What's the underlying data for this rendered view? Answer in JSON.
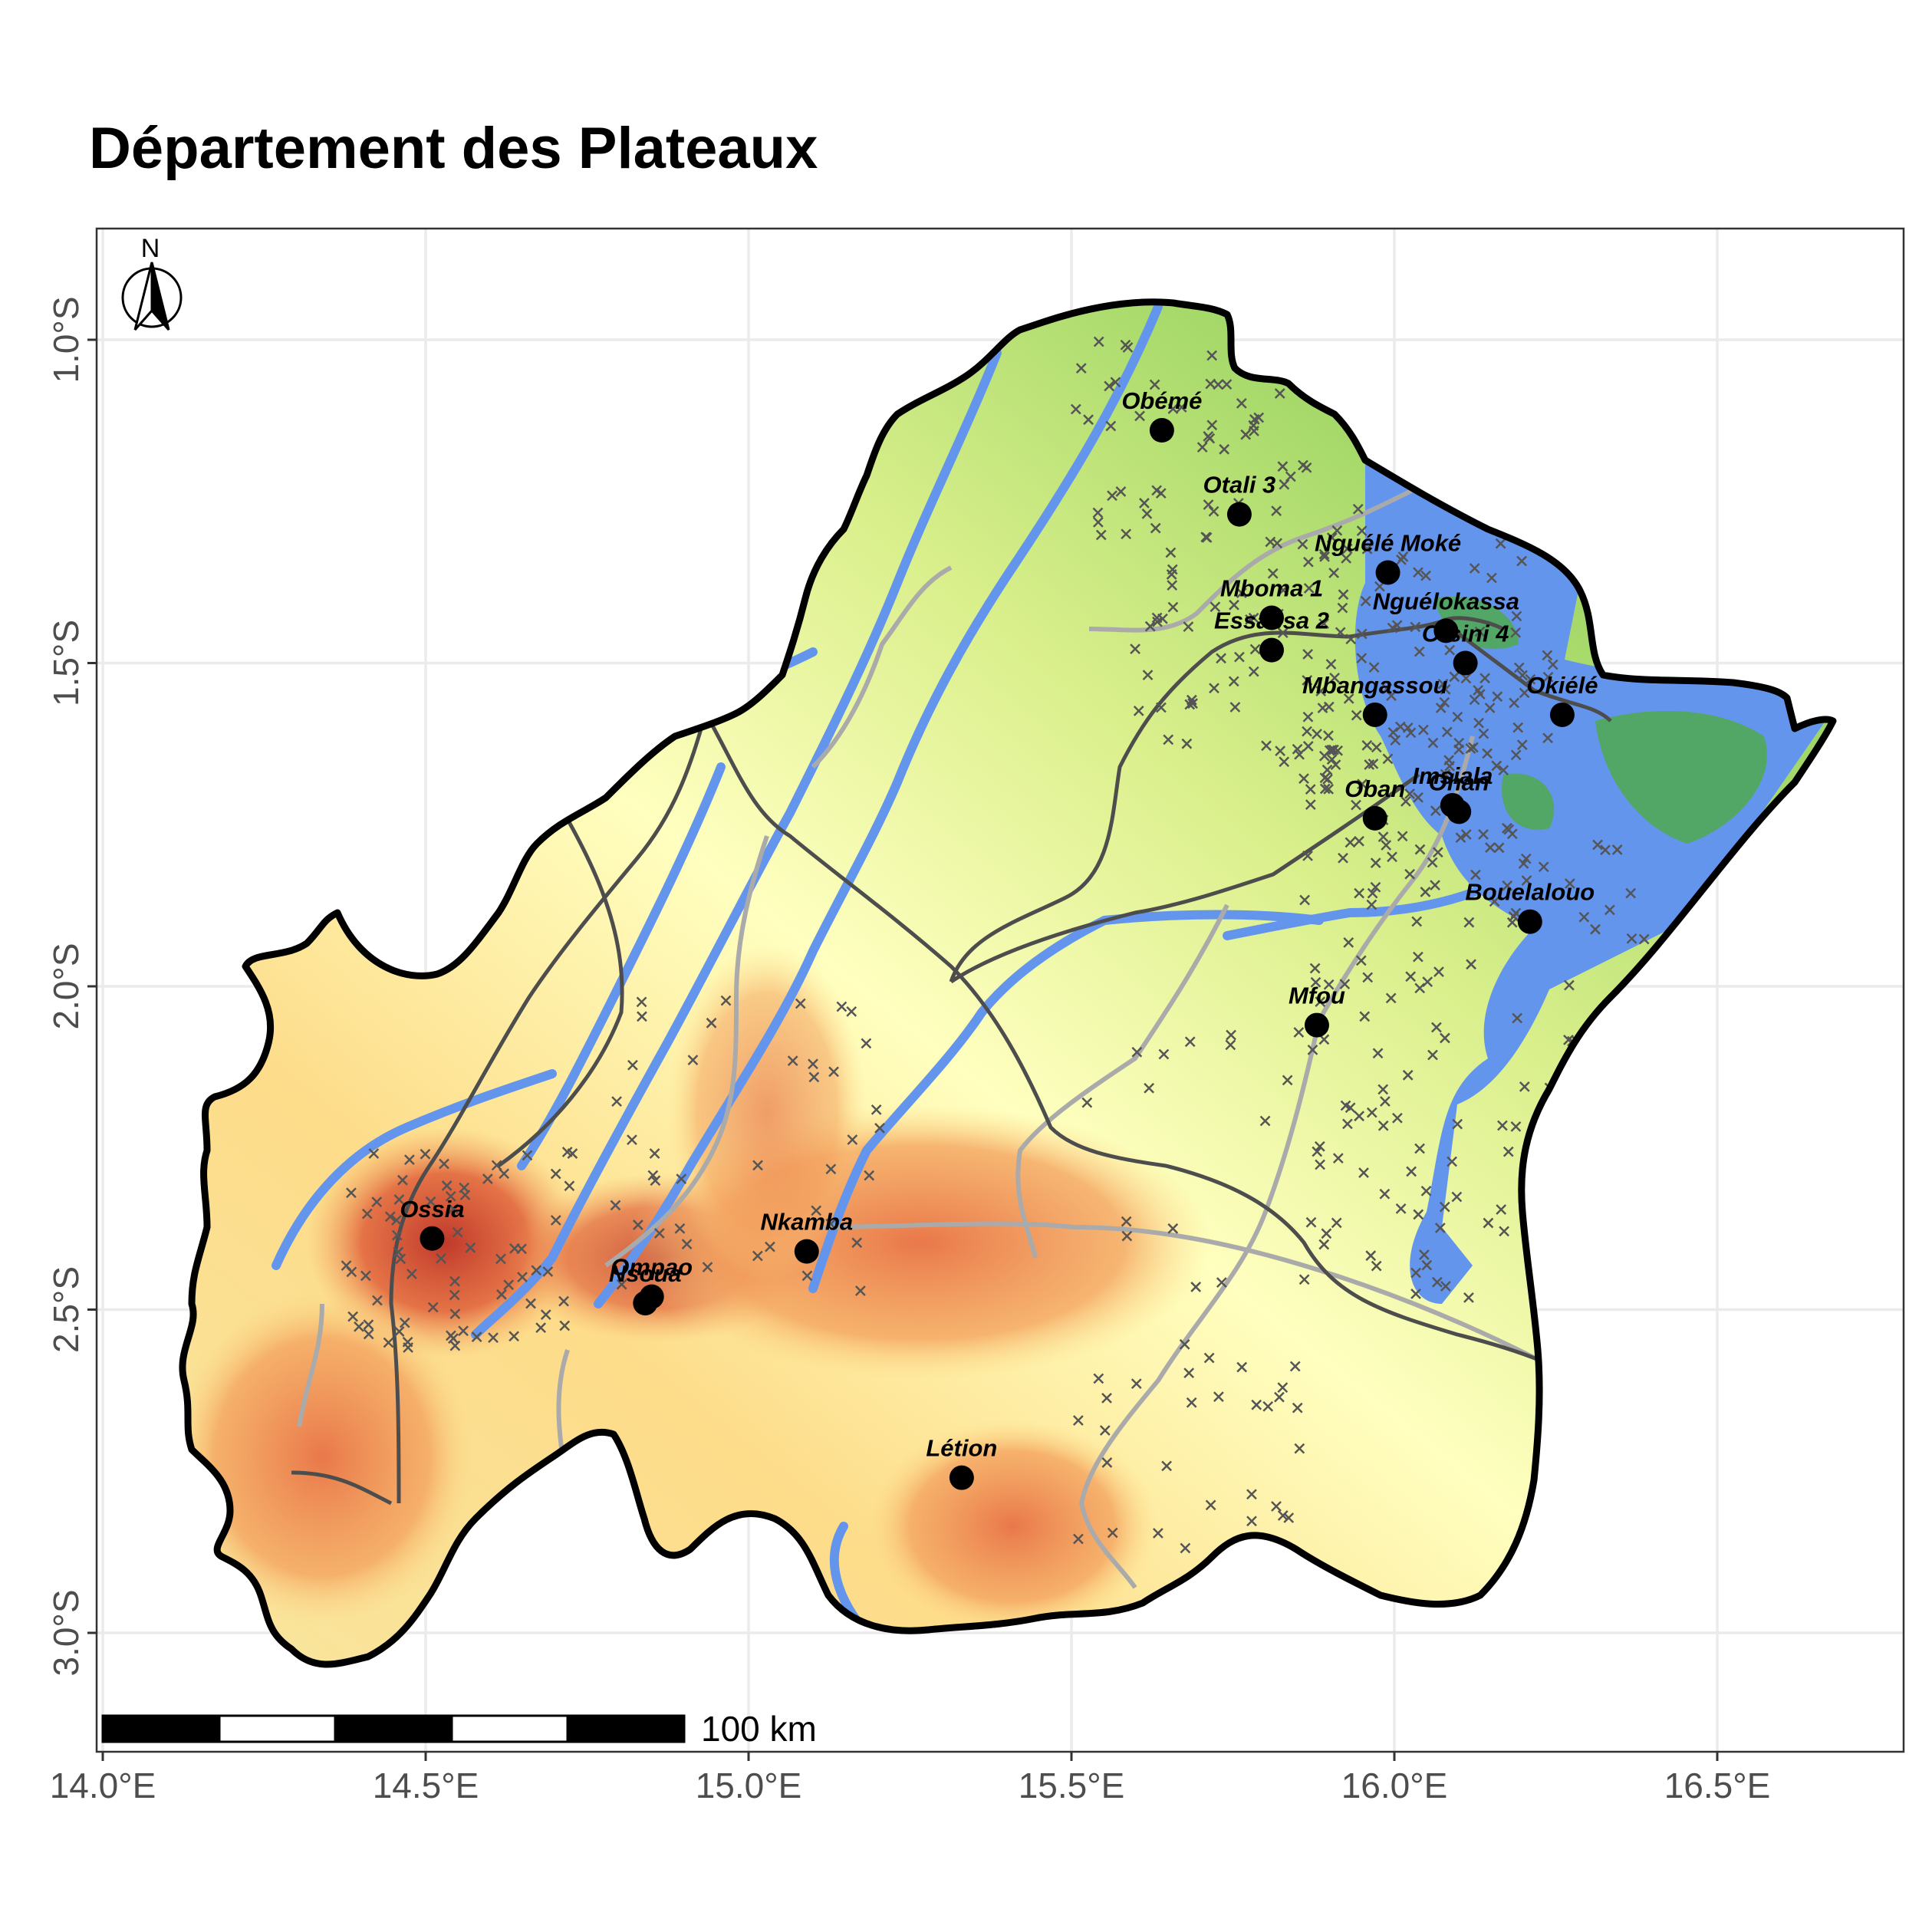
{
  "title": "Département des Plateaux",
  "axes": {
    "x_ticks": [
      {
        "value": 14.0,
        "label": "14.0°E"
      },
      {
        "value": 14.5,
        "label": "14.5°E"
      },
      {
        "value": 15.0,
        "label": "15.0°E"
      },
      {
        "value": 15.5,
        "label": "15.5°E"
      },
      {
        "value": 16.0,
        "label": "16.0°E"
      },
      {
        "value": 16.5,
        "label": "16.5°E"
      }
    ],
    "y_ticks": [
      {
        "value": -1.0,
        "label": "1.0°S"
      },
      {
        "value": -1.5,
        "label": "1.5°S"
      },
      {
        "value": -2.0,
        "label": "2.0°S"
      },
      {
        "value": -2.5,
        "label": "2.5°S"
      },
      {
        "value": -3.0,
        "label": "3.0°S"
      }
    ]
  },
  "north_arrow": {
    "label": "N"
  },
  "scale_bar": {
    "label": "100 km"
  },
  "towns": [
    {
      "name": "Obémé",
      "lon": 15.64,
      "lat": -1.14
    },
    {
      "name": "Otali 3",
      "lon": 15.76,
      "lat": -1.27
    },
    {
      "name": "Nguélé Moké",
      "lon": 15.99,
      "lat": -1.36
    },
    {
      "name": "Mboma 1",
      "lon": 15.81,
      "lat": -1.43
    },
    {
      "name": "Essassa 2",
      "lon": 15.81,
      "lat": -1.48
    },
    {
      "name": "Nguélokassa",
      "lon": 16.08,
      "lat": -1.45
    },
    {
      "name": "Otsini 4",
      "lon": 16.11,
      "lat": -1.5
    },
    {
      "name": "Mbangassou",
      "lon": 15.97,
      "lat": -1.58
    },
    {
      "name": "Okiélé",
      "lon": 16.26,
      "lat": -1.58
    },
    {
      "name": "Imsiala",
      "lon": 16.09,
      "lat": -1.72
    },
    {
      "name": "Ohan",
      "lon": 16.1,
      "lat": -1.73
    },
    {
      "name": "Oban",
      "lon": 15.97,
      "lat": -1.74
    },
    {
      "name": "Bouelalouo",
      "lon": 16.21,
      "lat": -1.9
    },
    {
      "name": "Mfou",
      "lon": 15.88,
      "lat": -2.06
    },
    {
      "name": "Ossia",
      "lon": 14.51,
      "lat": -2.39
    },
    {
      "name": "Nkamba",
      "lon": 15.09,
      "lat": -2.41
    },
    {
      "name": "Ompao",
      "lon": 14.85,
      "lat": -2.48
    },
    {
      "name": "Nsoua",
      "lon": 14.84,
      "lat": -2.49
    },
    {
      "name": "Létion",
      "lon": 15.33,
      "lat": -2.76
    }
  ],
  "colors": {
    "water": "#6495ED",
    "highland_red": "#D7301F",
    "orange": "#F4A460",
    "light_yellow": "#FFFFBF",
    "light_green": "#A6D96A",
    "green": "#66BD63",
    "road_major": "#4D4D4D",
    "road_minor": "#AAAAAA",
    "grid": "#EBEBEB",
    "outline": "#000000"
  }
}
